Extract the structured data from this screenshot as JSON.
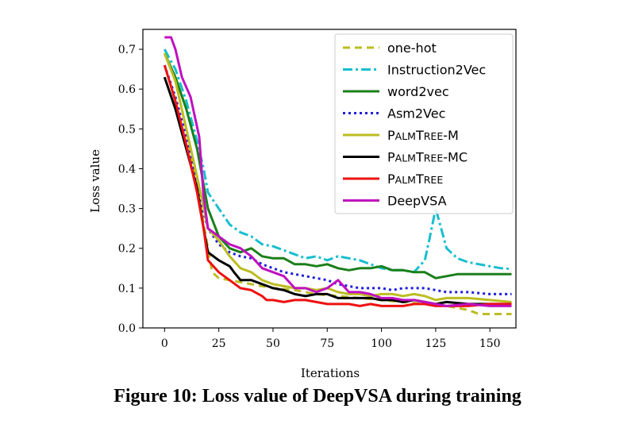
{
  "caption": "Figure 10: Loss value of DeepVSA during training",
  "chart_data": {
    "type": "line",
    "xlabel": "Iterations",
    "ylabel": "Loss value",
    "xlim": [
      -10,
      162
    ],
    "ylim": [
      0,
      0.75
    ],
    "xticks": [
      0,
      25,
      50,
      75,
      100,
      125,
      150
    ],
    "yticks": [
      0.0,
      0.1,
      0.2,
      0.3,
      0.4,
      0.5,
      0.6,
      0.7
    ],
    "legend_position": "top-right",
    "series": [
      {
        "name": "one-hot",
        "color": "#bcbd22",
        "dash": "9,6",
        "points": [
          [
            0,
            0.69
          ],
          [
            5,
            0.62
          ],
          [
            10,
            0.5
          ],
          [
            15,
            0.35
          ],
          [
            20,
            0.2
          ],
          [
            22,
            0.14
          ],
          [
            25,
            0.125
          ],
          [
            30,
            0.12
          ],
          [
            40,
            0.11
          ],
          [
            50,
            0.1
          ],
          [
            60,
            0.095
          ],
          [
            70,
            0.085
          ],
          [
            80,
            0.08
          ],
          [
            90,
            0.075
          ],
          [
            100,
            0.07
          ],
          [
            110,
            0.065
          ],
          [
            120,
            0.06
          ],
          [
            125,
            0.058
          ],
          [
            130,
            0.055
          ],
          [
            140,
            0.045
          ],
          [
            145,
            0.035
          ],
          [
            150,
            0.035
          ],
          [
            160,
            0.035
          ]
        ]
      },
      {
        "name": "Instruction2Vec",
        "color": "#17becf",
        "dash": "12,4,3,4",
        "points": [
          [
            0,
            0.7
          ],
          [
            5,
            0.65
          ],
          [
            10,
            0.57
          ],
          [
            15,
            0.47
          ],
          [
            18,
            0.4
          ],
          [
            20,
            0.34
          ],
          [
            25,
            0.3
          ],
          [
            30,
            0.26
          ],
          [
            35,
            0.24
          ],
          [
            40,
            0.23
          ],
          [
            45,
            0.21
          ],
          [
            50,
            0.205
          ],
          [
            55,
            0.195
          ],
          [
            60,
            0.185
          ],
          [
            65,
            0.175
          ],
          [
            70,
            0.18
          ],
          [
            75,
            0.17
          ],
          [
            80,
            0.18
          ],
          [
            85,
            0.175
          ],
          [
            90,
            0.17
          ],
          [
            95,
            0.16
          ],
          [
            100,
            0.15
          ],
          [
            105,
            0.145
          ],
          [
            110,
            0.145
          ],
          [
            115,
            0.14
          ],
          [
            120,
            0.17
          ],
          [
            122,
            0.22
          ],
          [
            125,
            0.3
          ],
          [
            127,
            0.26
          ],
          [
            130,
            0.2
          ],
          [
            135,
            0.175
          ],
          [
            140,
            0.165
          ],
          [
            145,
            0.16
          ],
          [
            150,
            0.155
          ],
          [
            155,
            0.15
          ],
          [
            160,
            0.148
          ]
        ]
      },
      {
        "name": "word2vec",
        "color": "#1a7f1a",
        "dash": "",
        "points": [
          [
            0,
            0.69
          ],
          [
            5,
            0.63
          ],
          [
            10,
            0.55
          ],
          [
            15,
            0.45
          ],
          [
            20,
            0.3
          ],
          [
            25,
            0.23
          ],
          [
            30,
            0.2
          ],
          [
            35,
            0.19
          ],
          [
            40,
            0.2
          ],
          [
            45,
            0.18
          ],
          [
            50,
            0.175
          ],
          [
            55,
            0.175
          ],
          [
            60,
            0.16
          ],
          [
            65,
            0.16
          ],
          [
            70,
            0.155
          ],
          [
            75,
            0.16
          ],
          [
            80,
            0.15
          ],
          [
            85,
            0.145
          ],
          [
            90,
            0.15
          ],
          [
            95,
            0.15
          ],
          [
            100,
            0.155
          ],
          [
            105,
            0.145
          ],
          [
            110,
            0.145
          ],
          [
            115,
            0.14
          ],
          [
            120,
            0.14
          ],
          [
            125,
            0.125
          ],
          [
            130,
            0.13
          ],
          [
            135,
            0.135
          ],
          [
            140,
            0.135
          ],
          [
            150,
            0.135
          ],
          [
            160,
            0.135
          ]
        ]
      },
      {
        "name": "Asm2Vec",
        "color": "#1f1fdb",
        "dash": "3,4",
        "points": [
          [
            0,
            0.66
          ],
          [
            5,
            0.58
          ],
          [
            10,
            0.48
          ],
          [
            15,
            0.35
          ],
          [
            20,
            0.25
          ],
          [
            25,
            0.21
          ],
          [
            30,
            0.19
          ],
          [
            35,
            0.18
          ],
          [
            40,
            0.175
          ],
          [
            45,
            0.16
          ],
          [
            50,
            0.15
          ],
          [
            55,
            0.14
          ],
          [
            60,
            0.135
          ],
          [
            65,
            0.13
          ],
          [
            70,
            0.125
          ],
          [
            75,
            0.12
          ],
          [
            80,
            0.11
          ],
          [
            85,
            0.105
          ],
          [
            90,
            0.1
          ],
          [
            95,
            0.1
          ],
          [
            100,
            0.1
          ],
          [
            105,
            0.095
          ],
          [
            110,
            0.1
          ],
          [
            115,
            0.1
          ],
          [
            120,
            0.1
          ],
          [
            125,
            0.095
          ],
          [
            130,
            0.09
          ],
          [
            140,
            0.09
          ],
          [
            150,
            0.085
          ],
          [
            160,
            0.085
          ]
        ]
      },
      {
        "name": "PALMTREE-M",
        "color": "#bcbd22",
        "dash": "",
        "points": [
          [
            0,
            0.69
          ],
          [
            5,
            0.62
          ],
          [
            10,
            0.5
          ],
          [
            15,
            0.38
          ],
          [
            20,
            0.25
          ],
          [
            25,
            0.22
          ],
          [
            30,
            0.18
          ],
          [
            35,
            0.15
          ],
          [
            40,
            0.14
          ],
          [
            45,
            0.12
          ],
          [
            50,
            0.11
          ],
          [
            55,
            0.105
          ],
          [
            60,
            0.1
          ],
          [
            65,
            0.1
          ],
          [
            70,
            0.095
          ],
          [
            75,
            0.1
          ],
          [
            80,
            0.09
          ],
          [
            85,
            0.085
          ],
          [
            90,
            0.085
          ],
          [
            95,
            0.08
          ],
          [
            100,
            0.085
          ],
          [
            105,
            0.085
          ],
          [
            110,
            0.08
          ],
          [
            115,
            0.085
          ],
          [
            120,
            0.08
          ],
          [
            125,
            0.07
          ],
          [
            130,
            0.075
          ],
          [
            140,
            0.075
          ],
          [
            150,
            0.07
          ],
          [
            160,
            0.065
          ]
        ]
      },
      {
        "name": "PALMTREE-MC",
        "color": "#000000",
        "dash": "",
        "points": [
          [
            0,
            0.63
          ],
          [
            5,
            0.55
          ],
          [
            10,
            0.45
          ],
          [
            15,
            0.35
          ],
          [
            18,
            0.25
          ],
          [
            20,
            0.19
          ],
          [
            25,
            0.17
          ],
          [
            30,
            0.155
          ],
          [
            32,
            0.14
          ],
          [
            35,
            0.12
          ],
          [
            40,
            0.12
          ],
          [
            45,
            0.11
          ],
          [
            50,
            0.1
          ],
          [
            55,
            0.095
          ],
          [
            60,
            0.085
          ],
          [
            65,
            0.08
          ],
          [
            70,
            0.085
          ],
          [
            75,
            0.085
          ],
          [
            80,
            0.075
          ],
          [
            85,
            0.075
          ],
          [
            90,
            0.075
          ],
          [
            95,
            0.075
          ],
          [
            100,
            0.07
          ],
          [
            105,
            0.07
          ],
          [
            110,
            0.065
          ],
          [
            115,
            0.07
          ],
          [
            120,
            0.065
          ],
          [
            125,
            0.06
          ],
          [
            130,
            0.065
          ],
          [
            140,
            0.06
          ],
          [
            150,
            0.06
          ],
          [
            160,
            0.06
          ]
        ]
      },
      {
        "name": "PALMTREE",
        "color": "#ee1111",
        "dash": "",
        "points": [
          [
            0,
            0.66
          ],
          [
            5,
            0.57
          ],
          [
            10,
            0.46
          ],
          [
            15,
            0.34
          ],
          [
            18,
            0.25
          ],
          [
            20,
            0.17
          ],
          [
            25,
            0.14
          ],
          [
            30,
            0.12
          ],
          [
            35,
            0.1
          ],
          [
            40,
            0.095
          ],
          [
            45,
            0.08
          ],
          [
            47,
            0.07
          ],
          [
            50,
            0.07
          ],
          [
            55,
            0.065
          ],
          [
            60,
            0.07
          ],
          [
            65,
            0.07
          ],
          [
            70,
            0.065
          ],
          [
            75,
            0.06
          ],
          [
            80,
            0.06
          ],
          [
            85,
            0.06
          ],
          [
            90,
            0.055
          ],
          [
            95,
            0.06
          ],
          [
            100,
            0.055
          ],
          [
            105,
            0.055
          ],
          [
            110,
            0.055
          ],
          [
            115,
            0.06
          ],
          [
            120,
            0.06
          ],
          [
            125,
            0.055
          ],
          [
            130,
            0.055
          ],
          [
            140,
            0.055
          ],
          [
            150,
            0.06
          ],
          [
            160,
            0.06
          ]
        ]
      },
      {
        "name": "DeepVSA",
        "color": "#c010c0",
        "dash": "",
        "points": [
          [
            0,
            0.73
          ],
          [
            3,
            0.73
          ],
          [
            5,
            0.7
          ],
          [
            8,
            0.63
          ],
          [
            12,
            0.58
          ],
          [
            16,
            0.48
          ],
          [
            18,
            0.33
          ],
          [
            20,
            0.25
          ],
          [
            25,
            0.23
          ],
          [
            30,
            0.21
          ],
          [
            35,
            0.2
          ],
          [
            40,
            0.18
          ],
          [
            45,
            0.15
          ],
          [
            50,
            0.14
          ],
          [
            55,
            0.13
          ],
          [
            60,
            0.1
          ],
          [
            65,
            0.1
          ],
          [
            70,
            0.09
          ],
          [
            75,
            0.1
          ],
          [
            80,
            0.12
          ],
          [
            85,
            0.09
          ],
          [
            90,
            0.09
          ],
          [
            95,
            0.085
          ],
          [
            100,
            0.075
          ],
          [
            105,
            0.075
          ],
          [
            110,
            0.07
          ],
          [
            115,
            0.07
          ],
          [
            120,
            0.065
          ],
          [
            125,
            0.06
          ],
          [
            130,
            0.055
          ],
          [
            140,
            0.06
          ],
          [
            150,
            0.055
          ],
          [
            160,
            0.055
          ]
        ]
      }
    ]
  }
}
